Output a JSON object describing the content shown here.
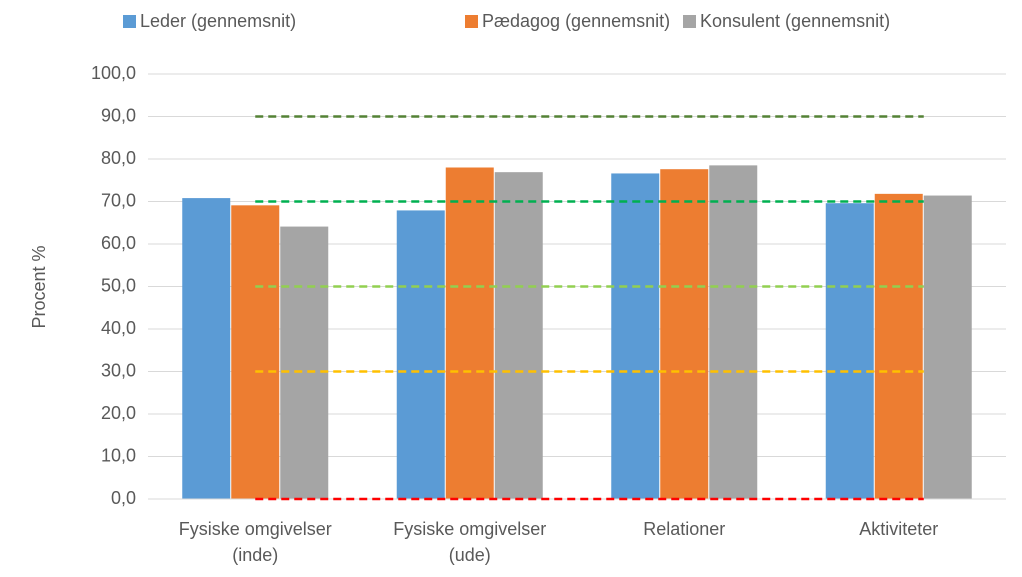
{
  "chart_data": {
    "type": "bar",
    "y_axis_label": "Procent %",
    "categories": [
      [
        "Fysiske omgivelser",
        "(inde)"
      ],
      [
        "Fysiske omgivelser",
        "(ude)"
      ],
      [
        "Relationer"
      ],
      [
        "Aktiviteter"
      ]
    ],
    "series": [
      {
        "name": "Leder (gennemsnit)",
        "color": "#5b9bd5",
        "values": [
          70.8,
          67.9,
          76.6,
          69.6
        ]
      },
      {
        "name": "Pædagog (gennemsnit)",
        "color": "#ed7d31",
        "values": [
          69.1,
          78.0,
          77.6,
          71.8
        ]
      },
      {
        "name": "Konsulent (gennemsnit)",
        "color": "#a5a5a5",
        "values": [
          64.1,
          76.9,
          78.5,
          71.4
        ]
      }
    ],
    "reference_lines": [
      {
        "value": 90,
        "color": "#548235"
      },
      {
        "value": 70,
        "color": "#00b050"
      },
      {
        "value": 50,
        "color": "#92d050"
      },
      {
        "value": 30,
        "color": "#ffc000"
      },
      {
        "value": 0,
        "color": "#ff0000"
      }
    ],
    "ylim": [
      0,
      100
    ],
    "yticks": [
      {
        "value": 0,
        "label": "0,0"
      },
      {
        "value": 10,
        "label": "10,0"
      },
      {
        "value": 20,
        "label": "20,0"
      },
      {
        "value": 30,
        "label": "30,0"
      },
      {
        "value": 40,
        "label": "40,0"
      },
      {
        "value": 50,
        "label": "50,0"
      },
      {
        "value": 60,
        "label": "60,0"
      },
      {
        "value": 70,
        "label": "70,0"
      },
      {
        "value": 80,
        "label": "80,0"
      },
      {
        "value": 90,
        "label": "90,0"
      },
      {
        "value": 100,
        "label": "100,0"
      }
    ],
    "grid": true,
    "legend": "top"
  }
}
